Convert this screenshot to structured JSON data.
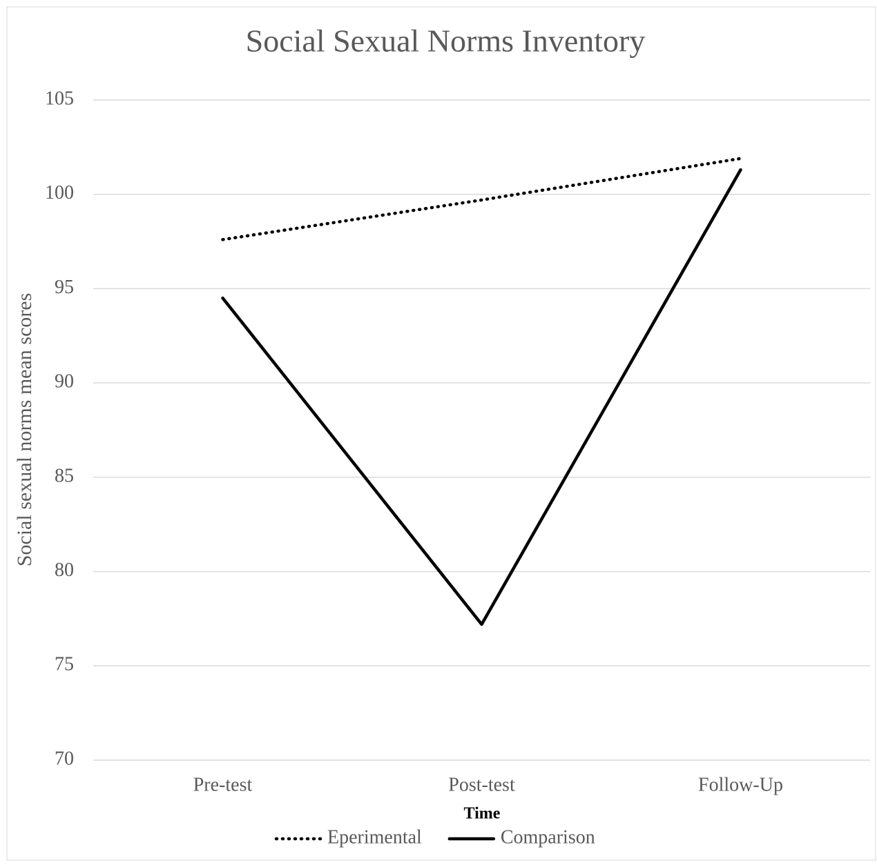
{
  "chart_data": {
    "type": "line",
    "title": "Social Sexual Norms Inventory",
    "x_label": "Time",
    "y_label": "Social sexual norms mean scores",
    "categories": [
      "Pre-test",
      "Post-test",
      "Follow-Up"
    ],
    "series": [
      {
        "name": "Eperimental",
        "color": "#000000",
        "line_style": "dotted",
        "values": [
          97.6,
          99.7,
          101.9
        ]
      },
      {
        "name": "Comparison",
        "color": "#000000",
        "line_style": "solid",
        "values": [
          94.5,
          77.2,
          101.3
        ]
      }
    ],
    "ylim": [
      70,
      105
    ],
    "yticks": [
      70,
      75,
      80,
      85,
      90,
      95,
      100,
      105
    ],
    "grid": true,
    "legend": "bottom"
  }
}
